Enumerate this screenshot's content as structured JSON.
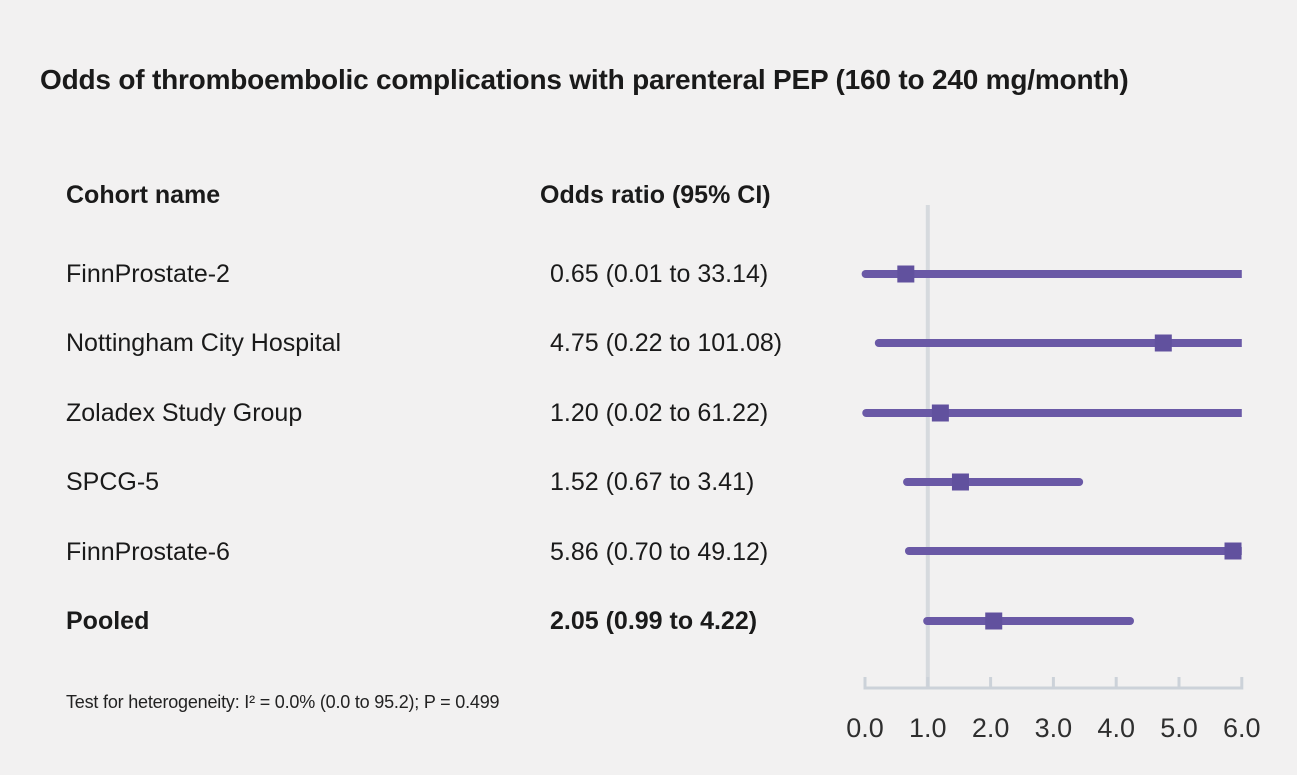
{
  "chart_data": {
    "type": "forest",
    "title": "Odds of thromboembolic complications with parenteral PEP (160 to 240 mg/month)",
    "col_headers": [
      "Cohort name",
      "Odds ratio (95% CI)"
    ],
    "rows": [
      {
        "label": "FinnProstate-2",
        "value_text": "0.65 (0.01 to 33.14)",
        "or": 0.65,
        "lo": 0.01,
        "hi": 33.14,
        "bold": false
      },
      {
        "label": "Nottingham City Hospital",
        "value_text": "4.75 (0.22 to 101.08)",
        "or": 4.75,
        "lo": 0.22,
        "hi": 101.08,
        "bold": false
      },
      {
        "label": "Zoladex Study Group",
        "value_text": "1.20 (0.02 to 61.22)",
        "or": 1.2,
        "lo": 0.02,
        "hi": 61.22,
        "bold": false
      },
      {
        "label": "SPCG-5",
        "value_text": "1.52 (0.67 to 3.41)",
        "or": 1.52,
        "lo": 0.67,
        "hi": 3.41,
        "bold": false
      },
      {
        "label": "FinnProstate-6",
        "value_text": "5.86 (0.70 to 49.12)",
        "or": 5.86,
        "lo": 0.7,
        "hi": 49.12,
        "bold": false
      },
      {
        "label": "Pooled",
        "value_text": "2.05 (0.99 to 4.22)",
        "or": 2.05,
        "lo": 0.99,
        "hi": 4.22,
        "bold": true
      }
    ],
    "footnote": "Test for heterogeneity: I² = 0.0% (0.0 to 95.2); P = 0.499",
    "x_axis": {
      "min": 0.0,
      "max": 6.0,
      "reference_line": 1.0,
      "ticks": [
        {
          "label": "0.0",
          "value": 0.0
        },
        {
          "label": "1.0",
          "value": 1.0
        },
        {
          "label": "2.0",
          "value": 2.0
        },
        {
          "label": "3.0",
          "value": 3.0
        },
        {
          "label": "4.0",
          "value": 4.0
        },
        {
          "label": "5.0",
          "value": 5.0
        },
        {
          "label": "6.0",
          "value": 6.0
        }
      ]
    },
    "colors": {
      "background": "#f2f1f1",
      "ci_line": "#6a59a6",
      "marker": "#61519e",
      "reference_line": "#d6dade",
      "axis": "#ccd2d9",
      "tick_text": "#2f2f2f",
      "text": "#1a1a1a"
    }
  }
}
